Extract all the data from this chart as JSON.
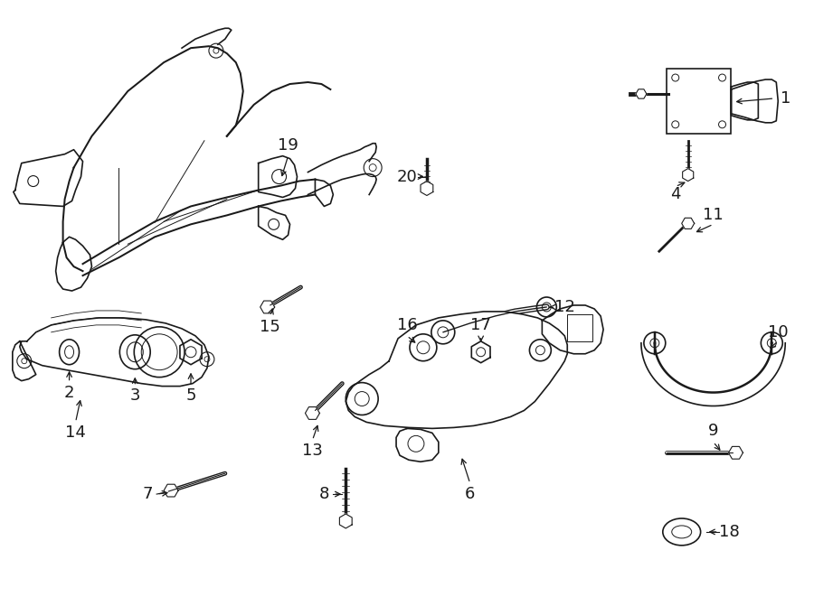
{
  "bg_color": "#ffffff",
  "line_color": "#1a1a1a",
  "lw": 1.2,
  "fig_width": 9.0,
  "fig_height": 6.61,
  "dpi": 100
}
